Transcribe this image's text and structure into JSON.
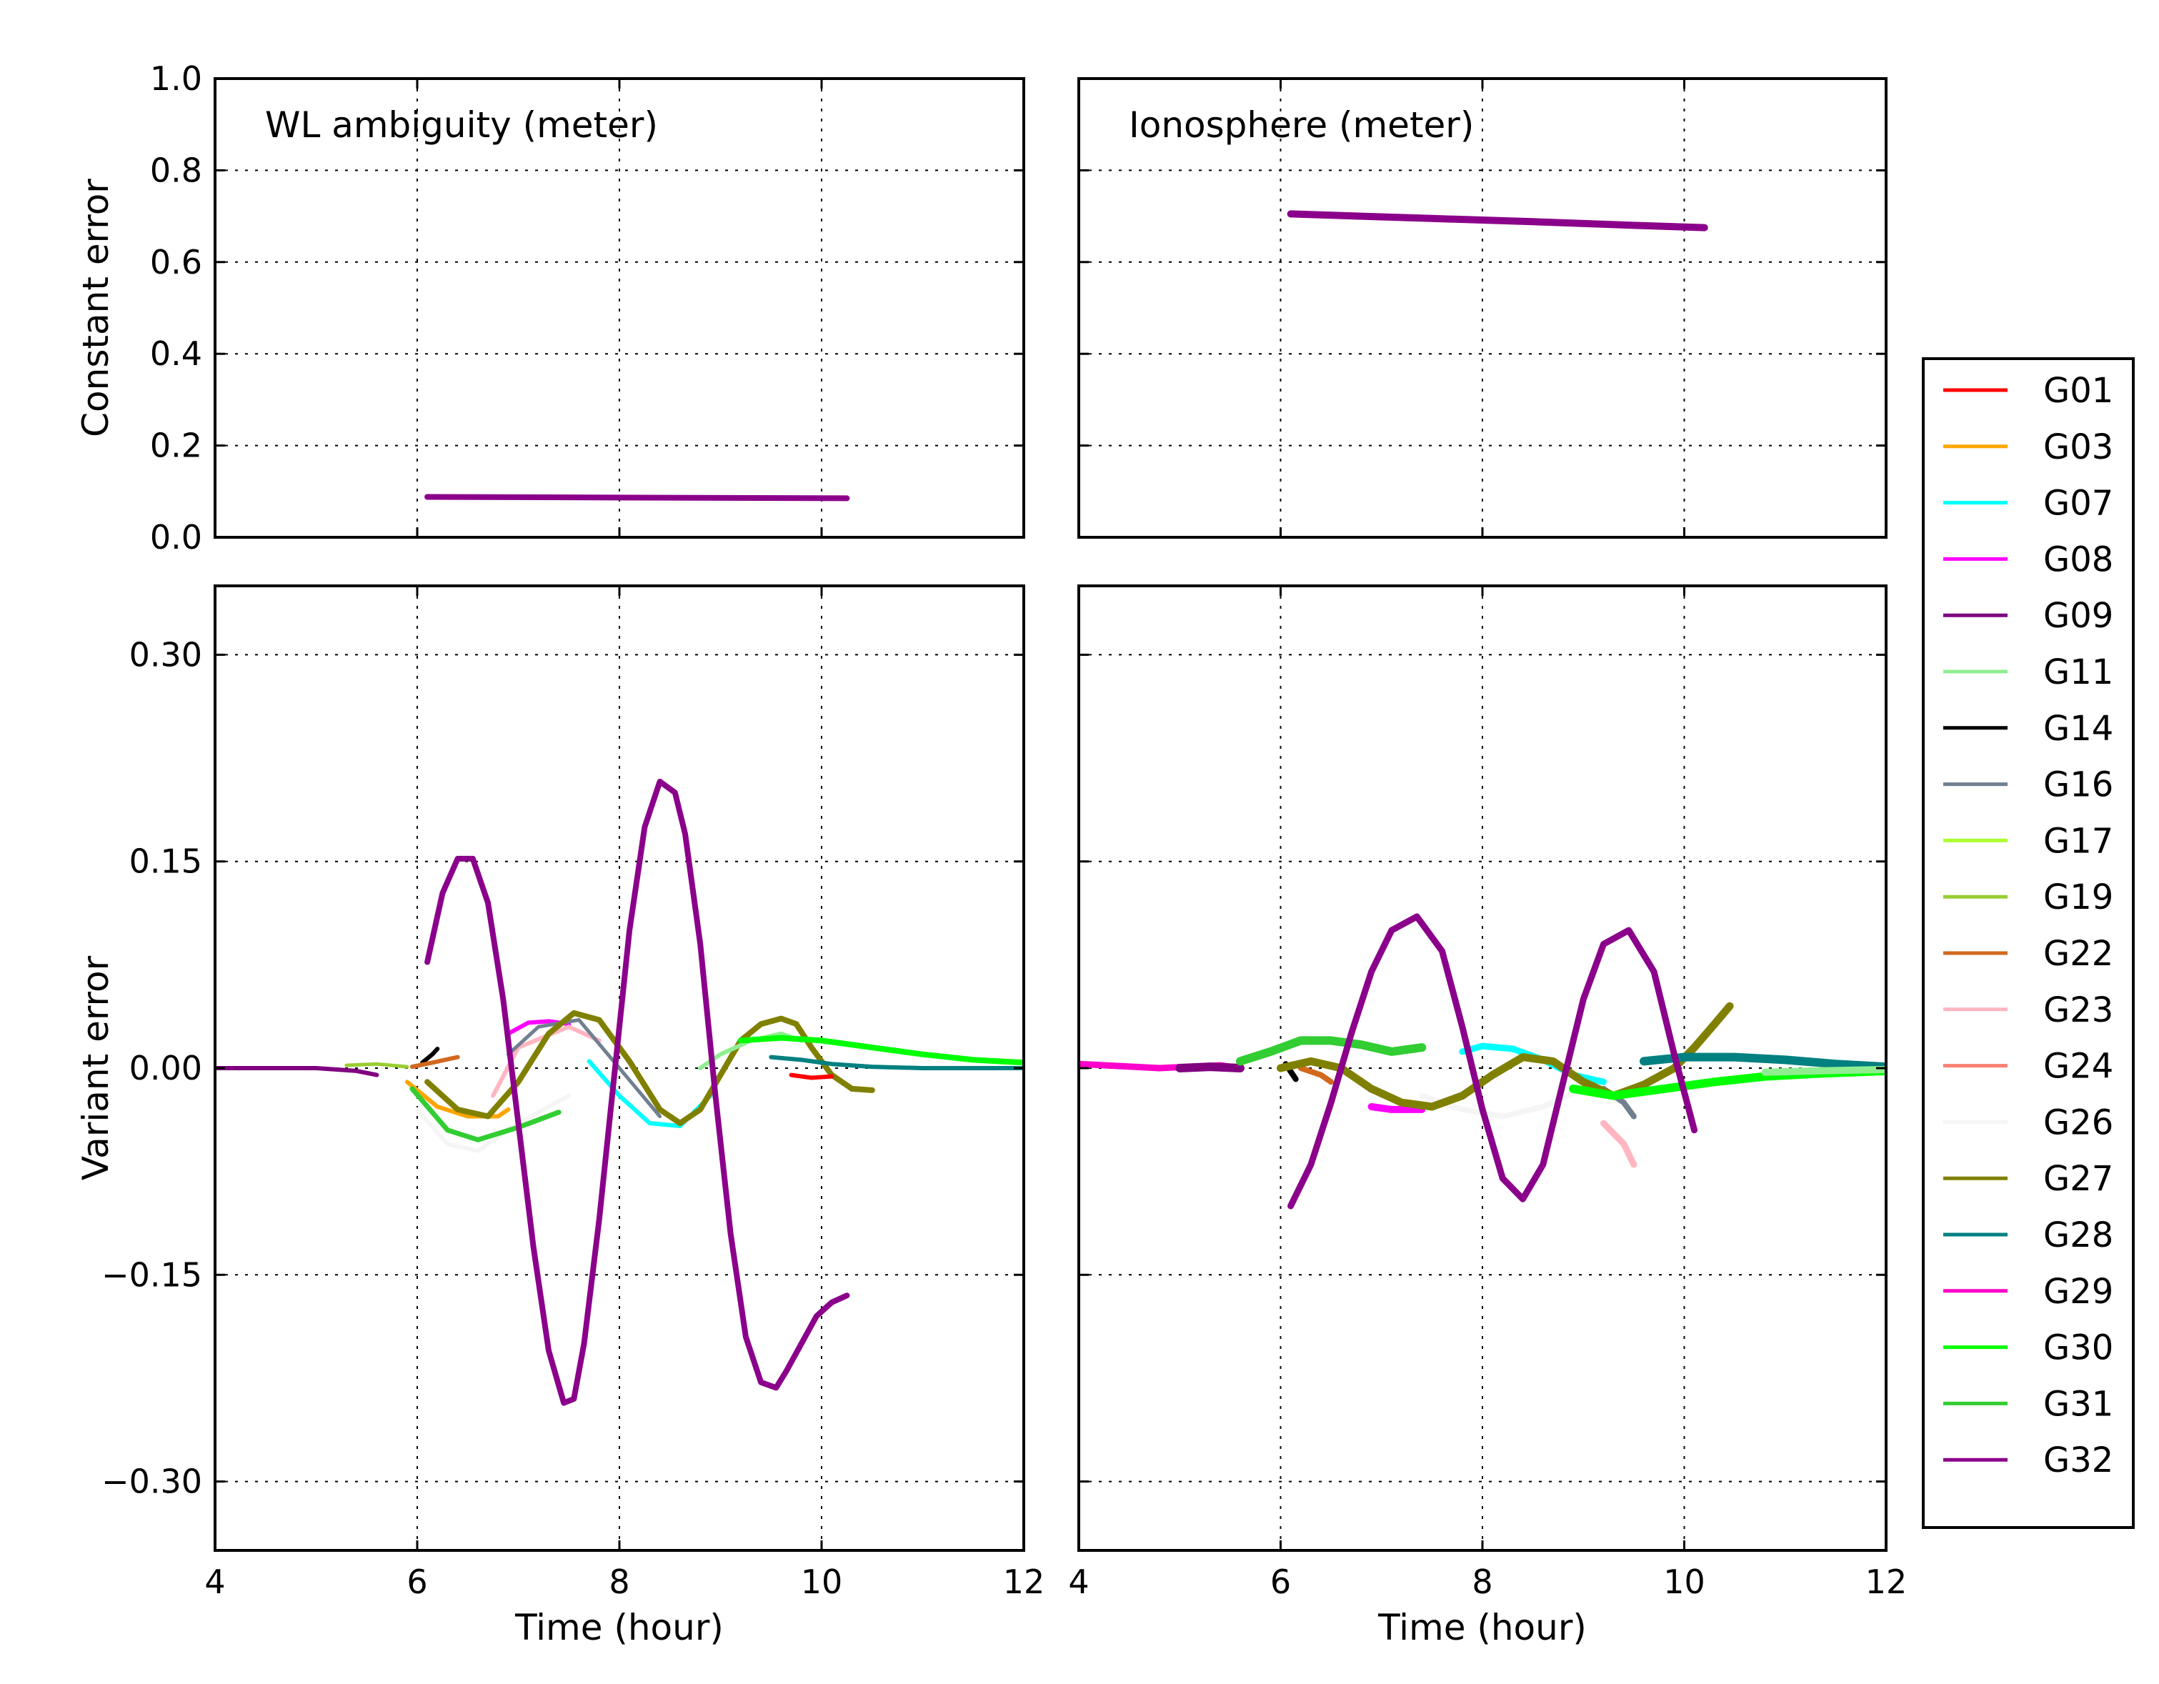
{
  "chart_data": {
    "type": "line",
    "legend": {
      "placement": "right",
      "entries": [
        {
          "name": "G01",
          "color": "#ff0000"
        },
        {
          "name": "G03",
          "color": "#ffa500"
        },
        {
          "name": "G07",
          "color": "#00ffff"
        },
        {
          "name": "G08",
          "color": "#ff00ff"
        },
        {
          "name": "G09",
          "color": "#800080"
        },
        {
          "name": "G11",
          "color": "#90ee90"
        },
        {
          "name": "G14",
          "color": "#000000"
        },
        {
          "name": "G16",
          "color": "#708090"
        },
        {
          "name": "G17",
          "color": "#adff2f"
        },
        {
          "name": "G19",
          "color": "#9acd32"
        },
        {
          "name": "G22",
          "color": "#d2691e"
        },
        {
          "name": "G23",
          "color": "#ffb6c1"
        },
        {
          "name": "G24",
          "color": "#fa8072"
        },
        {
          "name": "G26",
          "color": "#f5f5f5"
        },
        {
          "name": "G27",
          "color": "#808000"
        },
        {
          "name": "G28",
          "color": "#008080"
        },
        {
          "name": "G29",
          "color": "#ff00cc"
        },
        {
          "name": "G30",
          "color": "#00ff00"
        },
        {
          "name": "G31",
          "color": "#32cd32"
        },
        {
          "name": "G32",
          "color": "#8b008b"
        }
      ]
    },
    "panels": [
      {
        "id": "wl-constant",
        "title": "WL ambiguity (meter)",
        "ylabel": "Constant error",
        "xlabel": "",
        "xlim": [
          4,
          12
        ],
        "ylim": [
          0.0,
          1.0
        ],
        "xticks": [],
        "yticks": [
          "0.0",
          "0.2",
          "0.4",
          "0.6",
          "0.8",
          "1.0"
        ],
        "ytick_values": [
          0.0,
          0.2,
          0.4,
          0.6,
          0.8,
          1.0
        ],
        "xgrid": [
          6,
          8,
          10
        ],
        "series": [
          {
            "name": "G32",
            "x": [
              6.1,
              10.25
            ],
            "y": [
              0.088,
              0.085
            ],
            "width": 8
          }
        ]
      },
      {
        "id": "iono-constant",
        "title": "Ionosphere (meter)",
        "ylabel": "",
        "xlabel": "",
        "xlim": [
          4,
          12
        ],
        "ylim": [
          0.0,
          1.0
        ],
        "xticks": [],
        "yticks": [],
        "ytick_values": [
          0.0,
          0.2,
          0.4,
          0.6,
          0.8,
          1.0
        ],
        "xgrid": [
          6,
          8,
          10
        ],
        "series": [
          {
            "name": "G32",
            "x": [
              6.1,
              7.5,
              8.5,
              9.5,
              10.2
            ],
            "y": [
              0.705,
              0.695,
              0.688,
              0.68,
              0.675
            ],
            "width": 10
          }
        ]
      },
      {
        "id": "wl-variant",
        "title": "",
        "ylabel": "Variant error",
        "xlabel": "Time (hour)",
        "xlim": [
          4,
          12
        ],
        "ylim": [
          -0.35,
          0.35
        ],
        "xticks": [
          "4",
          "6",
          "8",
          "10",
          "12"
        ],
        "xtick_values": [
          4,
          6,
          8,
          10,
          12
        ],
        "yticks": [
          "−0.30",
          "−0.15",
          "0.00",
          "0.15",
          "0.30"
        ],
        "ytick_values": [
          -0.3,
          -0.15,
          0.0,
          0.15,
          0.3
        ],
        "xgrid": [
          6,
          8,
          10
        ],
        "series": [
          {
            "name": "G09",
            "x": [
              4.0,
              5.0,
              5.4,
              5.6
            ],
            "y": [
              0.0,
              0.0,
              -0.002,
              -0.005
            ],
            "width": 6
          },
          {
            "name": "G19",
            "x": [
              5.3,
              5.6,
              5.9
            ],
            "y": [
              0.002,
              0.003,
              0.001
            ],
            "width": 5
          },
          {
            "name": "G14",
            "x": [
              6.05,
              6.15,
              6.2
            ],
            "y": [
              0.004,
              0.01,
              0.014
            ],
            "width": 6
          },
          {
            "name": "G22",
            "x": [
              5.95,
              6.15,
              6.4
            ],
            "y": [
              0.001,
              0.004,
              0.008
            ],
            "width": 6
          },
          {
            "name": "G26",
            "x": [
              6.0,
              6.3,
              6.6,
              7.0,
              7.5
            ],
            "y": [
              -0.03,
              -0.055,
              -0.06,
              -0.04,
              -0.02
            ],
            "width": 6
          },
          {
            "name": "G03",
            "x": [
              5.9,
              6.2,
              6.5,
              6.8,
              6.9
            ],
            "y": [
              -0.01,
              -0.028,
              -0.035,
              -0.035,
              -0.03
            ],
            "width": 6
          },
          {
            "name": "G31",
            "x": [
              5.95,
              6.3,
              6.6,
              7.0,
              7.4
            ],
            "y": [
              -0.015,
              -0.045,
              -0.052,
              -0.043,
              -0.032
            ],
            "width": 7
          },
          {
            "name": "G08",
            "x": [
              6.9,
              7.1,
              7.3,
              7.5
            ],
            "y": [
              0.025,
              0.033,
              0.034,
              0.032
            ],
            "width": 6
          },
          {
            "name": "G23",
            "x": [
              6.75,
              7.0,
              7.5,
              7.8
            ],
            "y": [
              -0.02,
              0.015,
              0.03,
              0.02
            ],
            "width": 6
          },
          {
            "name": "G16",
            "x": [
              6.9,
              7.2,
              7.6,
              8.0,
              8.4
            ],
            "y": [
              0.01,
              0.03,
              0.035,
              0.0,
              -0.035
            ],
            "width": 5
          },
          {
            "name": "G07",
            "x": [
              7.7,
              8.0,
              8.3,
              8.6,
              8.9
            ],
            "y": [
              0.005,
              -0.02,
              -0.04,
              -0.042,
              -0.02
            ],
            "width": 6
          },
          {
            "name": "G27",
            "x": [
              6.1,
              6.4,
              6.7,
              7.0,
              7.3,
              7.55,
              7.8,
              8.1,
              8.4,
              8.6,
              8.8,
              9.0,
              9.2,
              9.4,
              9.6,
              9.75,
              9.9,
              10.1,
              10.3,
              10.5
            ],
            "y": [
              -0.01,
              -0.03,
              -0.035,
              -0.01,
              0.025,
              0.04,
              0.035,
              0.005,
              -0.03,
              -0.04,
              -0.03,
              -0.005,
              0.02,
              0.032,
              0.036,
              0.032,
              0.015,
              -0.005,
              -0.015,
              -0.016
            ],
            "width": 8
          },
          {
            "name": "G11",
            "x": [
              8.8,
              9.0,
              9.3,
              9.6,
              9.8
            ],
            "y": [
              0.0,
              0.01,
              0.02,
              0.025,
              0.02
            ],
            "width": 6
          },
          {
            "name": "G28",
            "x": [
              9.5,
              9.8,
              10.1,
              10.5,
              11.0,
              11.5,
              12.0
            ],
            "y": [
              0.008,
              0.006,
              0.003,
              0.001,
              0.0,
              0.0,
              0.0
            ],
            "width": 6
          },
          {
            "name": "G01",
            "x": [
              9.7,
              9.9,
              10.1
            ],
            "y": [
              -0.005,
              -0.007,
              -0.006
            ],
            "width": 6
          },
          {
            "name": "G30",
            "x": [
              9.2,
              9.6,
              10.0,
              10.5,
              11.0,
              11.5,
              12.0
            ],
            "y": [
              0.02,
              0.022,
              0.02,
              0.015,
              0.01,
              0.006,
              0.004
            ],
            "width": 8
          },
          {
            "name": "G32",
            "x": [
              6.1,
              6.25,
              6.4,
              6.55,
              6.7,
              6.85,
              7.0,
              7.15,
              7.3,
              7.45,
              7.55,
              7.65,
              7.8,
              7.95,
              8.1,
              8.25,
              8.4,
              8.55,
              8.65,
              8.8,
              8.95,
              9.1,
              9.25,
              9.4,
              9.55,
              9.65,
              9.8,
              9.95,
              10.1,
              10.25
            ],
            "y": [
              0.077,
              0.127,
              0.152,
              0.152,
              0.12,
              0.05,
              -0.04,
              -0.13,
              -0.205,
              -0.243,
              -0.24,
              -0.2,
              -0.11,
              -0.005,
              0.1,
              0.175,
              0.208,
              0.2,
              0.17,
              0.09,
              -0.02,
              -0.12,
              -0.195,
              -0.228,
              -0.232,
              -0.22,
              -0.2,
              -0.18,
              -0.17,
              -0.165
            ],
            "width": 8
          }
        ]
      },
      {
        "id": "iono-variant",
        "title": "",
        "ylabel": "",
        "xlabel": "Time (hour)",
        "xlim": [
          4,
          12
        ],
        "ylim": [
          -0.35,
          0.35
        ],
        "xticks": [
          "4",
          "6",
          "8",
          "10",
          "12"
        ],
        "xtick_values": [
          4,
          6,
          8,
          10,
          12
        ],
        "yticks": [],
        "ytick_values": [
          -0.3,
          -0.15,
          0.0,
          0.15,
          0.3
        ],
        "xgrid": [
          6,
          8,
          10
        ],
        "series": [
          {
            "name": "G29",
            "x": [
              4.0,
              4.8,
              5.4,
              5.6
            ],
            "y": [
              0.003,
              0.0,
              0.002,
              0.0
            ],
            "width": 9
          },
          {
            "name": "G09",
            "x": [
              5.0,
              5.3,
              5.6
            ],
            "y": [
              0.0,
              0.001,
              0.0
            ],
            "width": 12
          },
          {
            "name": "G14",
            "x": [
              6.05,
              6.15
            ],
            "y": [
              0.003,
              -0.008
            ],
            "width": 8
          },
          {
            "name": "G22",
            "x": [
              6.2,
              6.4,
              6.5
            ],
            "y": [
              0.0,
              -0.005,
              -0.01
            ],
            "width": 8
          },
          {
            "name": "G31",
            "x": [
              5.6,
              5.9,
              6.2,
              6.5,
              6.8,
              7.1,
              7.4
            ],
            "y": [
              0.005,
              0.012,
              0.02,
              0.02,
              0.017,
              0.012,
              0.015
            ],
            "width": 12
          },
          {
            "name": "G08",
            "x": [
              6.9,
              7.1,
              7.4
            ],
            "y": [
              -0.028,
              -0.03,
              -0.03
            ],
            "width": 10
          },
          {
            "name": "G07",
            "x": [
              7.8,
              8.0,
              8.3,
              8.6,
              8.9,
              9.2
            ],
            "y": [
              0.012,
              0.016,
              0.014,
              0.006,
              -0.005,
              -0.01
            ],
            "width": 9
          },
          {
            "name": "G26",
            "x": [
              7.4,
              7.8,
              8.2,
              8.6,
              9.0
            ],
            "y": [
              -0.02,
              -0.03,
              -0.035,
              -0.028,
              -0.015
            ],
            "width": 8
          },
          {
            "name": "G16",
            "x": [
              9.2,
              9.4,
              9.5
            ],
            "y": [
              -0.015,
              -0.025,
              -0.035
            ],
            "width": 8
          },
          {
            "name": "G23",
            "x": [
              9.2,
              9.4,
              9.5
            ],
            "y": [
              -0.04,
              -0.055,
              -0.07
            ],
            "width": 9
          },
          {
            "name": "G27",
            "x": [
              6.0,
              6.3,
              6.6,
              6.9,
              7.2,
              7.5,
              7.8,
              8.1,
              8.4,
              8.7,
              9.0,
              9.3,
              9.6,
              9.9,
              10.1,
              10.3,
              10.45
            ],
            "y": [
              0.0,
              0.005,
              0.0,
              -0.015,
              -0.025,
              -0.028,
              -0.02,
              -0.005,
              0.008,
              0.005,
              -0.01,
              -0.02,
              -0.012,
              0.0,
              0.015,
              0.032,
              0.045
            ],
            "width": 11
          },
          {
            "name": "G28",
            "x": [
              9.6,
              10.0,
              10.5,
              11.0,
              11.5,
              12.0
            ],
            "y": [
              0.005,
              0.008,
              0.008,
              0.006,
              0.003,
              0.001
            ],
            "width": 12
          },
          {
            "name": "G30",
            "x": [
              8.9,
              9.3,
              9.8,
              10.3,
              10.8,
              11.3,
              12.0
            ],
            "y": [
              -0.015,
              -0.02,
              -0.015,
              -0.01,
              -0.006,
              -0.004,
              -0.002
            ],
            "width": 12
          },
          {
            "name": "G11",
            "x": [
              10.8,
              11.3,
              12.0
            ],
            "y": [
              -0.003,
              -0.002,
              -0.001
            ],
            "width": 10
          },
          {
            "name": "G32",
            "x": [
              6.1,
              6.3,
              6.5,
              6.7,
              6.9,
              7.1,
              7.35,
              7.6,
              7.8,
              8.0,
              8.2,
              8.4,
              8.6,
              8.8,
              9.0,
              9.2,
              9.45,
              9.7,
              9.9,
              10.1
            ],
            "y": [
              -0.1,
              -0.07,
              -0.025,
              0.025,
              0.07,
              0.1,
              0.11,
              0.085,
              0.03,
              -0.03,
              -0.08,
              -0.095,
              -0.07,
              -0.01,
              0.05,
              0.09,
              0.1,
              0.07,
              0.01,
              -0.045
            ],
            "width": 9
          }
        ]
      }
    ]
  }
}
